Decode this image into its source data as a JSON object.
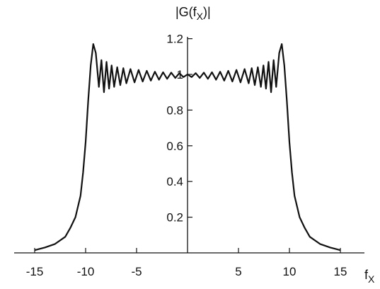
{
  "chart_data": {
    "type": "line",
    "title": "",
    "ylabel": "|G(f_X)|",
    "xlabel": "f_X",
    "xlim": [
      -15.5,
      15.5
    ],
    "ylim": [
      0,
      1.2
    ],
    "x_ticks": [
      -15,
      -10,
      -5,
      5,
      10,
      15
    ],
    "x_tick_labels": [
      "-15",
      "-10",
      "-5",
      "5",
      "10",
      "15"
    ],
    "y_ticks": [
      0.2,
      0.4,
      0.6,
      0.8,
      1,
      1.2
    ],
    "y_tick_labels": [
      "0.2",
      "0.4",
      "0.6",
      "0.8",
      "1",
      "1.2"
    ],
    "grid": false,
    "series": [
      {
        "description_of_curve": "Symmetric magnitude response with Gibbs ripple near the band edges (|f_X| ≈ 9) and rolloff outside",
        "points": [
          [
            -15.0,
            0.015
          ],
          [
            -14.0,
            0.03
          ],
          [
            -13.0,
            0.05
          ],
          [
            -12.0,
            0.09
          ],
          [
            -11.5,
            0.14
          ],
          [
            -11.0,
            0.2
          ],
          [
            -10.5,
            0.32
          ],
          [
            -10.25,
            0.45
          ],
          [
            -10.0,
            0.62
          ],
          [
            -9.75,
            0.85
          ],
          [
            -9.5,
            1.05
          ],
          [
            -9.25,
            1.17
          ],
          [
            -9.0,
            1.12
          ],
          [
            -8.7,
            0.93
          ],
          [
            -8.45,
            1.08
          ],
          [
            -8.2,
            0.9
          ],
          [
            -7.95,
            1.07
          ],
          [
            -7.7,
            0.92
          ],
          [
            -7.45,
            1.05
          ],
          [
            -7.2,
            0.93
          ],
          [
            -6.9,
            1.04
          ],
          [
            -6.6,
            0.94
          ],
          [
            -6.3,
            1.035
          ],
          [
            -6.0,
            0.95
          ],
          [
            -5.6,
            1.03
          ],
          [
            -5.2,
            0.955
          ],
          [
            -4.8,
            1.025
          ],
          [
            -4.4,
            0.96
          ],
          [
            -4.0,
            1.02
          ],
          [
            -3.6,
            0.965
          ],
          [
            -3.2,
            1.015
          ],
          [
            -2.8,
            0.97
          ],
          [
            -2.4,
            1.012
          ],
          [
            -2.0,
            0.975
          ],
          [
            -1.6,
            1.01
          ],
          [
            -1.2,
            0.98
          ],
          [
            -0.8,
            1.007
          ],
          [
            -0.4,
            0.985
          ],
          [
            0.0,
            1.0
          ],
          [
            0.4,
            0.985
          ],
          [
            0.8,
            1.007
          ],
          [
            1.2,
            0.98
          ],
          [
            1.6,
            1.01
          ],
          [
            2.0,
            0.975
          ],
          [
            2.4,
            1.012
          ],
          [
            2.8,
            0.97
          ],
          [
            3.2,
            1.015
          ],
          [
            3.6,
            0.965
          ],
          [
            4.0,
            1.02
          ],
          [
            4.4,
            0.96
          ],
          [
            4.8,
            1.025
          ],
          [
            5.2,
            0.955
          ],
          [
            5.6,
            1.03
          ],
          [
            6.0,
            0.95
          ],
          [
            6.3,
            1.035
          ],
          [
            6.6,
            0.94
          ],
          [
            6.9,
            1.04
          ],
          [
            7.2,
            0.93
          ],
          [
            7.45,
            1.05
          ],
          [
            7.7,
            0.92
          ],
          [
            7.95,
            1.07
          ],
          [
            8.2,
            0.9
          ],
          [
            8.45,
            1.08
          ],
          [
            8.7,
            0.93
          ],
          [
            9.0,
            1.12
          ],
          [
            9.25,
            1.17
          ],
          [
            9.5,
            1.05
          ],
          [
            9.75,
            0.85
          ],
          [
            10.0,
            0.62
          ],
          [
            10.25,
            0.45
          ],
          [
            10.5,
            0.32
          ],
          [
            11.0,
            0.2
          ],
          [
            11.5,
            0.14
          ],
          [
            12.0,
            0.09
          ],
          [
            13.0,
            0.05
          ],
          [
            14.0,
            0.03
          ],
          [
            15.0,
            0.015
          ]
        ]
      }
    ]
  }
}
